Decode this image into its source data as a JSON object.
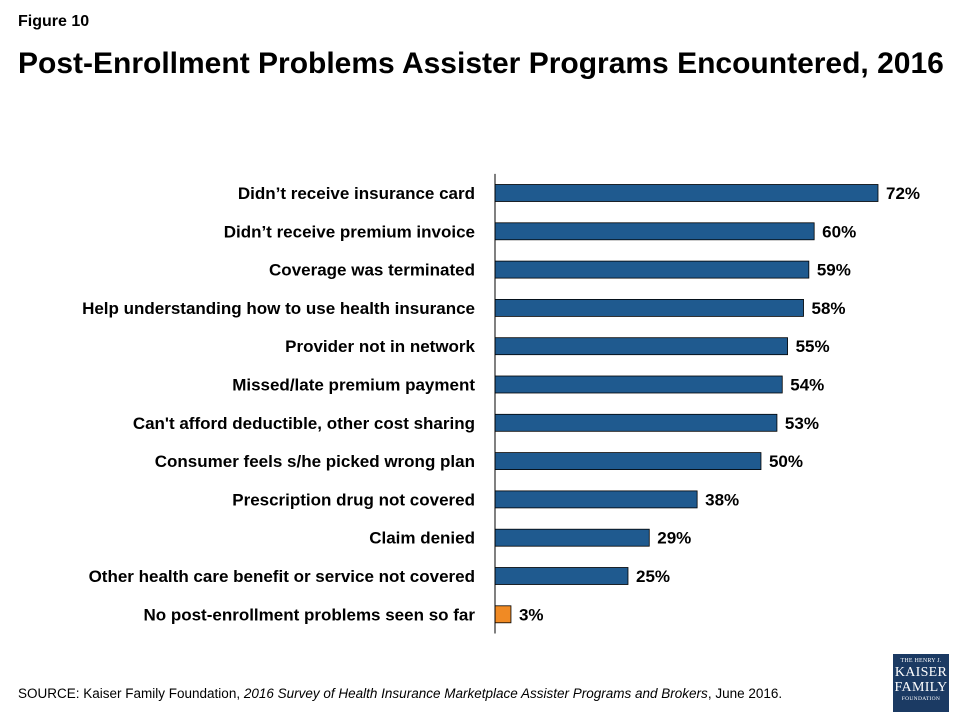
{
  "figure_label": "Figure 10",
  "title": "Post-Enrollment Problems Assister Programs Encountered, 2016",
  "source": {
    "prefix": "SOURCE: Kaiser Family Foundation, ",
    "italic": "2016 Survey of Health Insurance Marketplace Assister Programs and Brokers",
    "suffix": ", June 2016."
  },
  "logo": {
    "line1": "THE HENRY J.",
    "line2": "KAISER",
    "line3": "FAMILY",
    "line4": "FOUNDATION"
  },
  "colors": {
    "bar": "#1f5a8f",
    "bar_highlight": "#f08a24",
    "axis": "#000000",
    "logo_bg": "#1b3a63"
  },
  "chart_data": {
    "type": "bar",
    "orientation": "horizontal",
    "categories": [
      "Didn’t receive insurance card",
      "Didn’t receive premium invoice",
      "Coverage was terminated",
      "Help understanding how to use health insurance",
      "Provider not in network",
      "Missed/late premium payment",
      "Can't afford deductible, other cost sharing",
      "Consumer feels s/he picked wrong plan",
      "Prescription drug not covered",
      "Claim denied",
      "Other health care benefit or service not covered",
      "No post-enrollment problems seen so far"
    ],
    "values": [
      72,
      60,
      59,
      58,
      55,
      54,
      53,
      50,
      38,
      29,
      25,
      3
    ],
    "value_labels": [
      "72%",
      "60%",
      "59%",
      "58%",
      "55%",
      "54%",
      "53%",
      "50%",
      "38%",
      "29%",
      "25%",
      "3%"
    ],
    "highlight_index": 11,
    "unit": "%",
    "grid": false,
    "legend": "none"
  }
}
